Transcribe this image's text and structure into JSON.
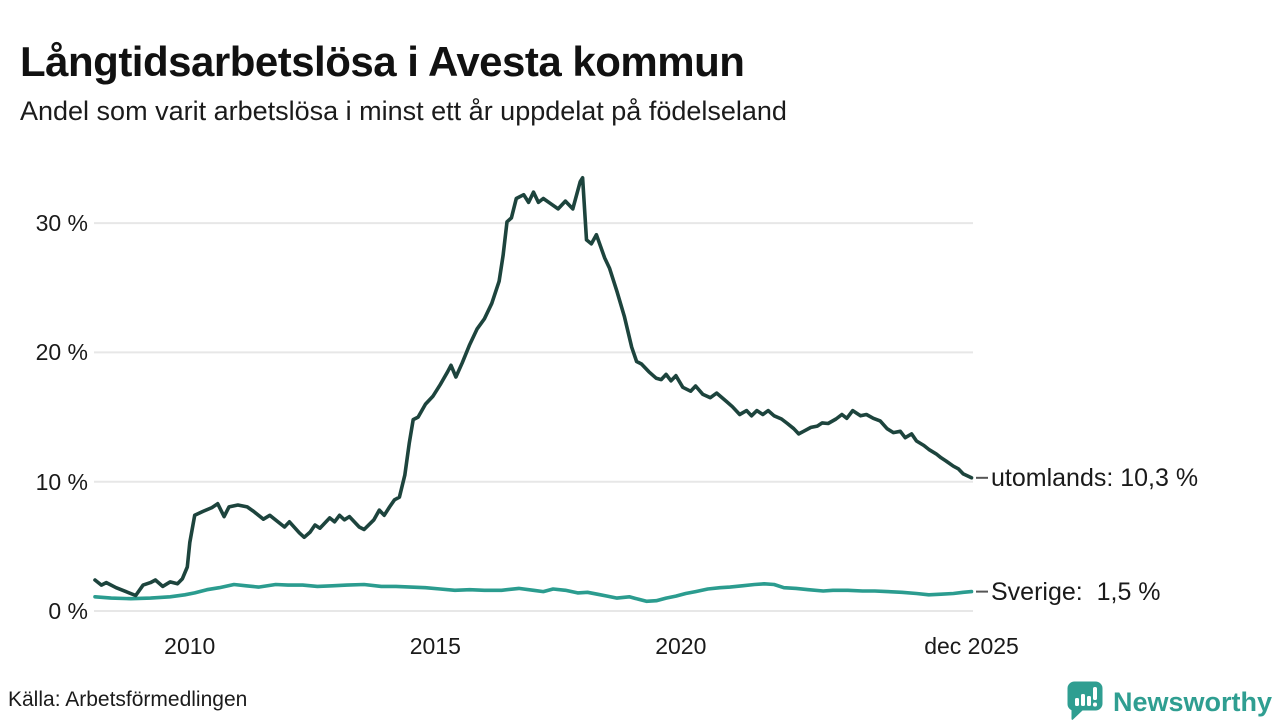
{
  "header": {
    "title": "Långtidsarbetslösa i Avesta kommun",
    "subtitle": "Andel som varit arbetslösa i minst ett år uppdelat på födelseland"
  },
  "footer": {
    "source": "Källa: Arbetsförmedlingen",
    "brand": "Newsworthy"
  },
  "colors": {
    "utomlands_line": "#1d443d",
    "sverige_line": "#2b9c8f",
    "grid": "#e7e7e7",
    "text": "#1a1a1a",
    "annotation_tick": "#555555",
    "brand_teal": "#2f9e91"
  },
  "chart_data": {
    "type": "line",
    "title": "Långtidsarbetslösa i Avesta kommun",
    "subtitle": "Andel som varit arbetslösa i minst ett år uppdelat på födelseland",
    "xlabel": "",
    "ylabel": "",
    "xlim": [
      2008.05,
      2025.95
    ],
    "ylim": [
      0,
      35.2
    ],
    "grid": "horizontal",
    "legend_position": "right-end-labels",
    "y_ticks": [
      {
        "label": "0 %",
        "value": 0
      },
      {
        "label": "10 %",
        "value": 10
      },
      {
        "label": "20 %",
        "value": 20
      },
      {
        "label": "30 %",
        "value": 30
      }
    ],
    "x_ticks": [
      {
        "label": "2010",
        "year": 2010
      },
      {
        "label": "2015",
        "year": 2015
      },
      {
        "label": "2020",
        "year": 2020
      },
      {
        "label": "dec 2025",
        "year": 2025.92
      }
    ],
    "series": [
      {
        "name": "Sverige",
        "color": "#2b9c8f",
        "end_label": "Sverige:  1,5 %",
        "end_value": 1.5,
        "points": [
          [
            2008.07,
            1.1
          ],
          [
            2008.4,
            1.0
          ],
          [
            2008.8,
            0.95
          ],
          [
            2009.2,
            1.0
          ],
          [
            2009.6,
            1.1
          ],
          [
            2009.9,
            1.25
          ],
          [
            2010.1,
            1.4
          ],
          [
            2010.35,
            1.65
          ],
          [
            2010.6,
            1.8
          ],
          [
            2010.9,
            2.05
          ],
          [
            2011.15,
            1.95
          ],
          [
            2011.4,
            1.85
          ],
          [
            2011.75,
            2.05
          ],
          [
            2012.0,
            2.0
          ],
          [
            2012.3,
            2.0
          ],
          [
            2012.6,
            1.9
          ],
          [
            2012.9,
            1.95
          ],
          [
            2013.2,
            2.0
          ],
          [
            2013.55,
            2.05
          ],
          [
            2013.9,
            1.9
          ],
          [
            2014.2,
            1.9
          ],
          [
            2014.5,
            1.85
          ],
          [
            2014.8,
            1.8
          ],
          [
            2015.1,
            1.7
          ],
          [
            2015.4,
            1.6
          ],
          [
            2015.7,
            1.65
          ],
          [
            2016.0,
            1.6
          ],
          [
            2016.35,
            1.6
          ],
          [
            2016.7,
            1.75
          ],
          [
            2017.0,
            1.6
          ],
          [
            2017.2,
            1.5
          ],
          [
            2017.4,
            1.7
          ],
          [
            2017.65,
            1.6
          ],
          [
            2017.9,
            1.4
          ],
          [
            2018.1,
            1.45
          ],
          [
            2018.3,
            1.3
          ],
          [
            2018.5,
            1.15
          ],
          [
            2018.7,
            1.0
          ],
          [
            2018.95,
            1.1
          ],
          [
            2019.15,
            0.9
          ],
          [
            2019.3,
            0.75
          ],
          [
            2019.5,
            0.8
          ],
          [
            2019.7,
            1.0
          ],
          [
            2019.9,
            1.15
          ],
          [
            2020.1,
            1.35
          ],
          [
            2020.3,
            1.5
          ],
          [
            2020.55,
            1.7
          ],
          [
            2020.8,
            1.8
          ],
          [
            2021.0,
            1.85
          ],
          [
            2021.25,
            1.95
          ],
          [
            2021.5,
            2.05
          ],
          [
            2021.7,
            2.1
          ],
          [
            2021.9,
            2.05
          ],
          [
            2022.1,
            1.8
          ],
          [
            2022.35,
            1.75
          ],
          [
            2022.6,
            1.65
          ],
          [
            2022.9,
            1.55
          ],
          [
            2023.1,
            1.6
          ],
          [
            2023.4,
            1.6
          ],
          [
            2023.7,
            1.55
          ],
          [
            2023.95,
            1.55
          ],
          [
            2024.2,
            1.5
          ],
          [
            2024.5,
            1.45
          ],
          [
            2024.8,
            1.35
          ],
          [
            2025.05,
            1.25
          ],
          [
            2025.3,
            1.3
          ],
          [
            2025.55,
            1.35
          ],
          [
            2025.75,
            1.45
          ],
          [
            2025.92,
            1.5
          ]
        ]
      },
      {
        "name": "utomlands",
        "color": "#1d443d",
        "end_label": "utomlands: 10,3 %",
        "end_value": 10.3,
        "points": [
          [
            2008.07,
            2.4
          ],
          [
            2008.2,
            2.0
          ],
          [
            2008.3,
            2.2
          ],
          [
            2008.5,
            1.8
          ],
          [
            2008.7,
            1.5
          ],
          [
            2008.9,
            1.2
          ],
          [
            2009.05,
            2.0
          ],
          [
            2009.2,
            2.2
          ],
          [
            2009.3,
            2.4
          ],
          [
            2009.45,
            1.9
          ],
          [
            2009.6,
            2.25
          ],
          [
            2009.75,
            2.1
          ],
          [
            2009.85,
            2.5
          ],
          [
            2009.95,
            3.4
          ],
          [
            2010.0,
            5.3
          ],
          [
            2010.1,
            7.4
          ],
          [
            2010.27,
            7.7
          ],
          [
            2010.45,
            8.0
          ],
          [
            2010.57,
            8.3
          ],
          [
            2010.7,
            7.3
          ],
          [
            2010.8,
            8.05
          ],
          [
            2010.98,
            8.2
          ],
          [
            2011.17,
            8.05
          ],
          [
            2011.3,
            7.7
          ],
          [
            2011.5,
            7.1
          ],
          [
            2011.63,
            7.4
          ],
          [
            2011.83,
            6.8
          ],
          [
            2011.93,
            6.5
          ],
          [
            2012.03,
            6.9
          ],
          [
            2012.23,
            6.05
          ],
          [
            2012.33,
            5.7
          ],
          [
            2012.45,
            6.1
          ],
          [
            2012.55,
            6.65
          ],
          [
            2012.65,
            6.4
          ],
          [
            2012.85,
            7.2
          ],
          [
            2012.95,
            6.9
          ],
          [
            2013.05,
            7.4
          ],
          [
            2013.15,
            7.05
          ],
          [
            2013.25,
            7.3
          ],
          [
            2013.45,
            6.5
          ],
          [
            2013.55,
            6.3
          ],
          [
            2013.75,
            7.05
          ],
          [
            2013.86,
            7.8
          ],
          [
            2013.96,
            7.4
          ],
          [
            2014.07,
            8.05
          ],
          [
            2014.17,
            8.6
          ],
          [
            2014.27,
            8.8
          ],
          [
            2014.38,
            10.5
          ],
          [
            2014.47,
            13.0
          ],
          [
            2014.55,
            14.8
          ],
          [
            2014.65,
            15.0
          ],
          [
            2014.8,
            16.0
          ],
          [
            2014.95,
            16.6
          ],
          [
            2015.1,
            17.5
          ],
          [
            2015.25,
            18.5
          ],
          [
            2015.32,
            19.0
          ],
          [
            2015.42,
            18.1
          ],
          [
            2015.55,
            19.2
          ],
          [
            2015.7,
            20.6
          ],
          [
            2015.85,
            21.8
          ],
          [
            2016.0,
            22.6
          ],
          [
            2016.15,
            23.8
          ],
          [
            2016.3,
            25.5
          ],
          [
            2016.38,
            27.5
          ],
          [
            2016.46,
            30.1
          ],
          [
            2016.55,
            30.4
          ],
          [
            2016.65,
            31.9
          ],
          [
            2016.8,
            32.2
          ],
          [
            2016.9,
            31.6
          ],
          [
            2017.0,
            32.4
          ],
          [
            2017.1,
            31.6
          ],
          [
            2017.2,
            31.9
          ],
          [
            2017.35,
            31.5
          ],
          [
            2017.5,
            31.1
          ],
          [
            2017.65,
            31.7
          ],
          [
            2017.8,
            31.1
          ],
          [
            2017.95,
            33.2
          ],
          [
            2018.0,
            33.5
          ],
          [
            2018.08,
            28.7
          ],
          [
            2018.18,
            28.4
          ],
          [
            2018.28,
            29.1
          ],
          [
            2018.45,
            27.3
          ],
          [
            2018.55,
            26.5
          ],
          [
            2018.7,
            24.7
          ],
          [
            2018.85,
            22.8
          ],
          [
            2019.0,
            20.4
          ],
          [
            2019.1,
            19.3
          ],
          [
            2019.2,
            19.1
          ],
          [
            2019.35,
            18.5
          ],
          [
            2019.5,
            18.0
          ],
          [
            2019.6,
            17.9
          ],
          [
            2019.7,
            18.3
          ],
          [
            2019.8,
            17.8
          ],
          [
            2019.9,
            18.2
          ],
          [
            2020.04,
            17.3
          ],
          [
            2020.2,
            17.0
          ],
          [
            2020.3,
            17.4
          ],
          [
            2020.45,
            16.75
          ],
          [
            2020.6,
            16.5
          ],
          [
            2020.73,
            16.85
          ],
          [
            2020.93,
            16.2
          ],
          [
            2021.05,
            15.8
          ],
          [
            2021.2,
            15.2
          ],
          [
            2021.34,
            15.5
          ],
          [
            2021.44,
            15.1
          ],
          [
            2021.55,
            15.5
          ],
          [
            2021.67,
            15.2
          ],
          [
            2021.78,
            15.5
          ],
          [
            2021.9,
            15.1
          ],
          [
            2022.05,
            14.85
          ],
          [
            2022.17,
            14.5
          ],
          [
            2022.3,
            14.1
          ],
          [
            2022.4,
            13.7
          ],
          [
            2022.5,
            13.9
          ],
          [
            2022.65,
            14.2
          ],
          [
            2022.78,
            14.3
          ],
          [
            2022.88,
            14.55
          ],
          [
            2023.0,
            14.5
          ],
          [
            2023.16,
            14.85
          ],
          [
            2023.28,
            15.2
          ],
          [
            2023.38,
            14.9
          ],
          [
            2023.5,
            15.5
          ],
          [
            2023.66,
            15.1
          ],
          [
            2023.78,
            15.2
          ],
          [
            2023.92,
            14.9
          ],
          [
            2024.06,
            14.7
          ],
          [
            2024.2,
            14.1
          ],
          [
            2024.33,
            13.8
          ],
          [
            2024.47,
            13.9
          ],
          [
            2024.57,
            13.4
          ],
          [
            2024.7,
            13.7
          ],
          [
            2024.8,
            13.15
          ],
          [
            2024.95,
            12.8
          ],
          [
            2025.05,
            12.5
          ],
          [
            2025.2,
            12.15
          ],
          [
            2025.3,
            11.85
          ],
          [
            2025.4,
            11.6
          ],
          [
            2025.55,
            11.2
          ],
          [
            2025.65,
            11.0
          ],
          [
            2025.75,
            10.6
          ],
          [
            2025.92,
            10.3
          ]
        ]
      }
    ]
  }
}
